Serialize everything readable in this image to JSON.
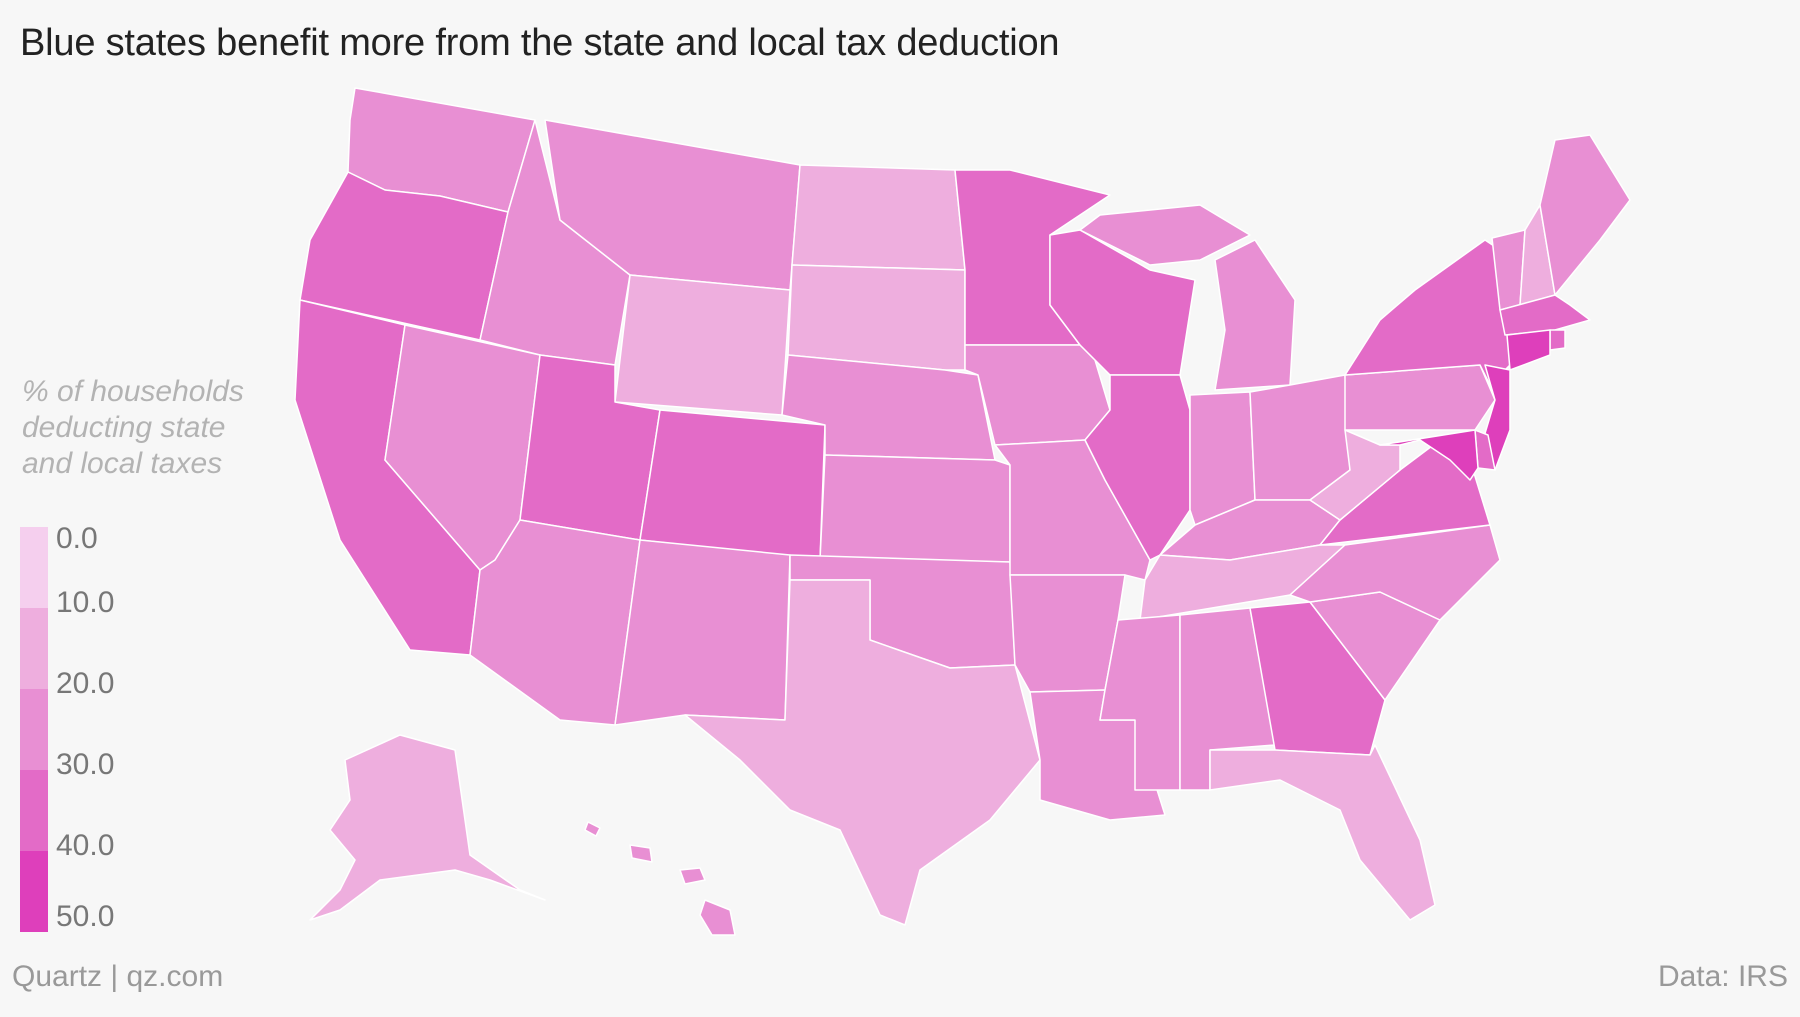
{
  "header": {
    "title": "Blue states benefit more from the state and local tax deduction"
  },
  "legend": {
    "title_lines": [
      "% of households",
      "deducting state",
      "and local taxes"
    ],
    "ticks": [
      "0.0",
      "10.0",
      "20.0",
      "30.0",
      "40.0",
      "50.0"
    ],
    "colors": [
      "#f5cfee",
      "#eeaede",
      "#e88fd3",
      "#e36bc7",
      "#de3fbb"
    ]
  },
  "footer": {
    "source_left": "Quartz | qz.com",
    "source_right": "Data: IRS"
  },
  "chart_data": {
    "type": "choropleth",
    "value_unit": "% of households deducting state and local taxes",
    "bins": [
      [
        0,
        10
      ],
      [
        10,
        20
      ],
      [
        20,
        30
      ],
      [
        30,
        40
      ],
      [
        40,
        50
      ]
    ],
    "states": [
      {
        "id": "WA",
        "bin": 2
      },
      {
        "id": "OR",
        "bin": 3
      },
      {
        "id": "CA",
        "bin": 3
      },
      {
        "id": "ID",
        "bin": 2
      },
      {
        "id": "NV",
        "bin": 2
      },
      {
        "id": "MT",
        "bin": 2
      },
      {
        "id": "WY",
        "bin": 1
      },
      {
        "id": "UT",
        "bin": 3
      },
      {
        "id": "AZ",
        "bin": 2
      },
      {
        "id": "CO",
        "bin": 3
      },
      {
        "id": "NM",
        "bin": 2
      },
      {
        "id": "ND",
        "bin": 1
      },
      {
        "id": "SD",
        "bin": 1
      },
      {
        "id": "NE",
        "bin": 2
      },
      {
        "id": "KS",
        "bin": 2
      },
      {
        "id": "OK",
        "bin": 2
      },
      {
        "id": "TX",
        "bin": 1
      },
      {
        "id": "MN",
        "bin": 3
      },
      {
        "id": "IA",
        "bin": 2
      },
      {
        "id": "MO",
        "bin": 2
      },
      {
        "id": "AR",
        "bin": 2
      },
      {
        "id": "LA",
        "bin": 2
      },
      {
        "id": "WI",
        "bin": 3
      },
      {
        "id": "IL",
        "bin": 3
      },
      {
        "id": "MI",
        "bin": 2
      },
      {
        "id": "IN",
        "bin": 2
      },
      {
        "id": "OH",
        "bin": 2
      },
      {
        "id": "KY",
        "bin": 2
      },
      {
        "id": "TN",
        "bin": 1
      },
      {
        "id": "MS",
        "bin": 2
      },
      {
        "id": "AL",
        "bin": 2
      },
      {
        "id": "GA",
        "bin": 3
      },
      {
        "id": "FL",
        "bin": 1
      },
      {
        "id": "SC",
        "bin": 2
      },
      {
        "id": "NC",
        "bin": 2
      },
      {
        "id": "VA",
        "bin": 3
      },
      {
        "id": "WV",
        "bin": 1
      },
      {
        "id": "PA",
        "bin": 2
      },
      {
        "id": "NY",
        "bin": 3
      },
      {
        "id": "VT",
        "bin": 2
      },
      {
        "id": "NH",
        "bin": 1
      },
      {
        "id": "ME",
        "bin": 2
      },
      {
        "id": "MA",
        "bin": 3
      },
      {
        "id": "RI",
        "bin": 3
      },
      {
        "id": "CT",
        "bin": 4
      },
      {
        "id": "NJ",
        "bin": 4
      },
      {
        "id": "DE",
        "bin": 3
      },
      {
        "id": "MD",
        "bin": 4
      },
      {
        "id": "AK",
        "bin": 1
      },
      {
        "id": "HI",
        "bin": 2
      }
    ]
  }
}
